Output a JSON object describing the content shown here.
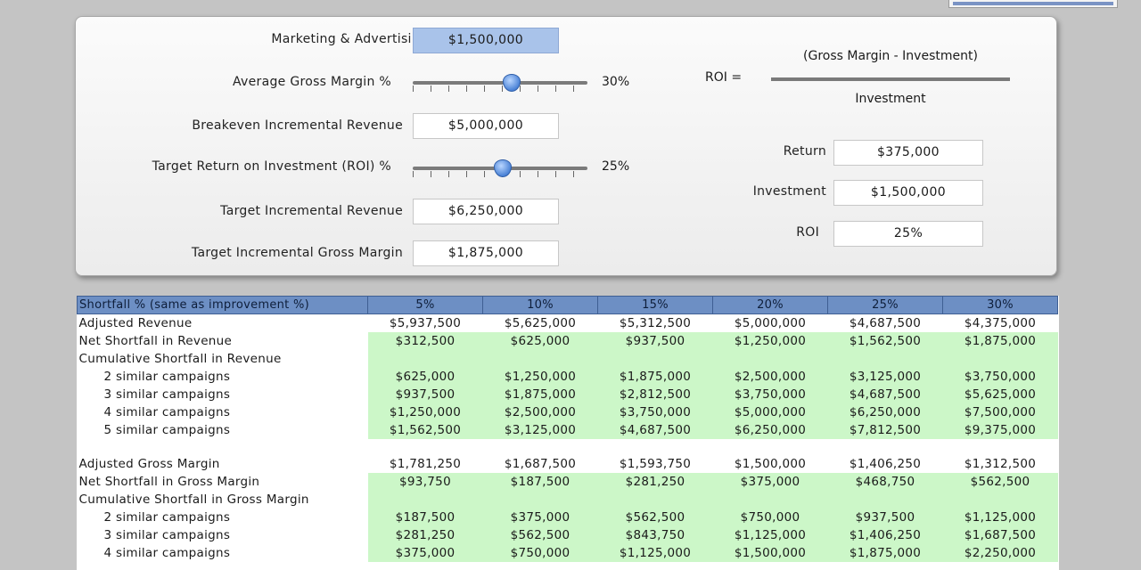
{
  "top_panel": {
    "budget": {
      "label": "Marketing & Advertising Budget",
      "value": "$1,500,000"
    },
    "gross_margin": {
      "label": "Average Gross Margin %",
      "value": "30%",
      "slider_fraction": 0.3
    },
    "breakeven": {
      "label": "Breakeven Incremental Revenue",
      "value": "$5,000,000"
    },
    "target_roi": {
      "label": "Target Return on Investment (ROI) %",
      "value": "25%",
      "slider_fraction": 0.25
    },
    "target_revenue": {
      "label": "Target Incremental Revenue",
      "value": "$6,250,000"
    },
    "target_gross_margin": {
      "label": "Target Incremental Gross Margin",
      "value": "$1,875,000"
    },
    "formula": {
      "lhs": "ROI =",
      "numerator": "(Gross Margin - Investment)",
      "denominator": "Investment"
    },
    "return": {
      "label": "Return",
      "value": "$375,000"
    },
    "investment": {
      "label": "Investment",
      "value": "$1,500,000"
    },
    "roi": {
      "label": "ROI",
      "value": "25%"
    }
  },
  "table": {
    "header_label": "Shortfall % (same as improvement %)",
    "columns": [
      "5%",
      "10%",
      "15%",
      "20%",
      "25%",
      "30%"
    ],
    "rows": [
      {
        "label": "Adjusted Revenue",
        "indent": false,
        "shade": "w",
        "values": [
          "$5,937,500",
          "$5,625,000",
          "$5,312,500",
          "$5,000,000",
          "$4,687,500",
          "$4,375,000"
        ]
      },
      {
        "label": "Net Shortfall in Revenue",
        "indent": false,
        "shade": "g",
        "values": [
          "$312,500",
          "$625,000",
          "$937,500",
          "$1,250,000",
          "$1,562,500",
          "$1,875,000"
        ]
      },
      {
        "label": "Cumulative Shortfall in Revenue",
        "indent": false,
        "shade": "g",
        "values": [
          "",
          "",
          "",
          "",
          "",
          ""
        ]
      },
      {
        "label": "2 similar campaigns",
        "indent": true,
        "shade": "g",
        "values": [
          "$625,000",
          "$1,250,000",
          "$1,875,000",
          "$2,500,000",
          "$3,125,000",
          "$3,750,000"
        ]
      },
      {
        "label": "3 similar campaigns",
        "indent": true,
        "shade": "g",
        "values": [
          "$937,500",
          "$1,875,000",
          "$2,812,500",
          "$3,750,000",
          "$4,687,500",
          "$5,625,000"
        ]
      },
      {
        "label": "4 similar campaigns",
        "indent": true,
        "shade": "g",
        "values": [
          "$1,250,000",
          "$2,500,000",
          "$3,750,000",
          "$5,000,000",
          "$6,250,000",
          "$7,500,000"
        ]
      },
      {
        "label": "5 similar campaigns",
        "indent": true,
        "shade": "g",
        "values": [
          "$1,562,500",
          "$3,125,000",
          "$4,687,500",
          "$6,250,000",
          "$7,812,500",
          "$9,375,000"
        ]
      },
      {
        "spacer": true
      },
      {
        "label": "Adjusted Gross Margin",
        "indent": false,
        "shade": "w",
        "values": [
          "$1,781,250",
          "$1,687,500",
          "$1,593,750",
          "$1,500,000",
          "$1,406,250",
          "$1,312,500"
        ]
      },
      {
        "label": "Net Shortfall in Gross Margin",
        "indent": false,
        "shade": "g",
        "values": [
          "$93,750",
          "$187,500",
          "$281,250",
          "$375,000",
          "$468,750",
          "$562,500"
        ]
      },
      {
        "label": "Cumulative Shortfall in Gross Margin",
        "indent": false,
        "shade": "g",
        "values": [
          "",
          "",
          "",
          "",
          "",
          ""
        ]
      },
      {
        "label": "2 similar campaigns",
        "indent": true,
        "shade": "g",
        "values": [
          "$187,500",
          "$375,000",
          "$562,500",
          "$750,000",
          "$937,500",
          "$1,125,000"
        ]
      },
      {
        "label": "3 similar campaigns",
        "indent": true,
        "shade": "g",
        "values": [
          "$281,250",
          "$562,500",
          "$843,750",
          "$1,125,000",
          "$1,406,250",
          "$1,687,500"
        ]
      },
      {
        "label": "4 similar campaigns",
        "indent": true,
        "shade": "g",
        "values": [
          "$375,000",
          "$750,000",
          "$1,125,000",
          "$1,500,000",
          "$1,875,000",
          "$2,250,000"
        ]
      }
    ]
  }
}
